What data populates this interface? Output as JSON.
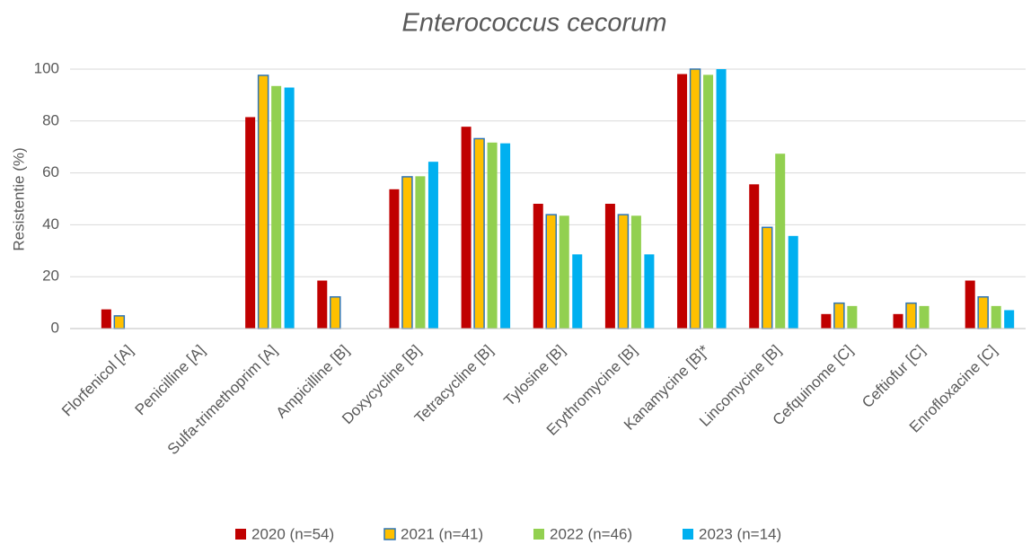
{
  "chart_data": {
    "type": "bar",
    "title": "Enterococcus cecorum",
    "y_label": "Resistentie (%)",
    "categories": [
      "Florfenicol [A]",
      "Penicilline [A]",
      "Sulfa-trimethoprim [A]",
      "Ampicilline [B]",
      "Doxycycline [B]",
      "Tetracycline [B]",
      "Tylosine [B]",
      "Erythromycine [B]",
      "Kanamycine [B]*",
      "Lincomycine [B]",
      "Cefquinome [C]",
      "Ceftiofur [C]",
      "Enrofloxacine [C]"
    ],
    "series": [
      {
        "name": "2020 (n=54)",
        "color": "#c00000",
        "values": [
          7.4,
          0,
          81.5,
          18.5,
          53.7,
          77.8,
          48.1,
          48.1,
          98.1,
          55.6,
          5.6,
          5.6,
          18.5
        ]
      },
      {
        "name": "2021 (n=41)",
        "color": "#ffc000",
        "edge": "#2e75b6",
        "values": [
          4.9,
          0,
          97.6,
          12.2,
          58.5,
          73.2,
          43.9,
          43.9,
          100,
          39.0,
          9.8,
          9.8,
          12.2
        ]
      },
      {
        "name": "2022 (n=46)",
        "color": "#92d050",
        "values": [
          0,
          0,
          93.5,
          0,
          58.7,
          71.7,
          43.5,
          43.5,
          97.8,
          67.4,
          8.7,
          8.7,
          8.7
        ]
      },
      {
        "name": "2023 (n=14)",
        "color": "#00b0f0",
        "values": [
          0,
          0,
          92.9,
          0,
          64.3,
          71.4,
          28.6,
          28.6,
          100,
          35.7,
          0,
          0,
          7.1
        ]
      }
    ],
    "ylim": [
      0,
      100
    ],
    "yticks": [
      0,
      20,
      40,
      60,
      80,
      100
    ],
    "grid": true,
    "legend": "bottom"
  }
}
